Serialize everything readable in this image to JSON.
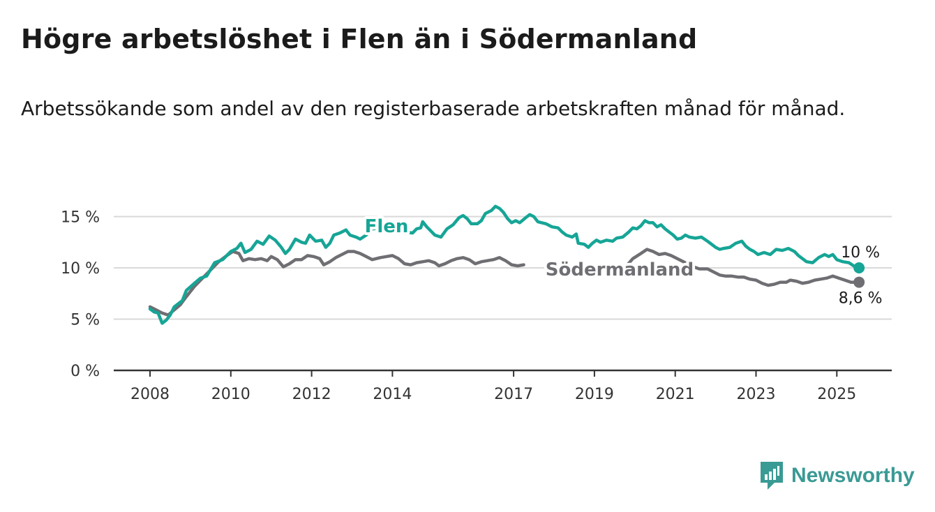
{
  "title": "Högre arbetslöshet i Flen än i Södermanland",
  "subtitle": "Arbetssökande som andel av den registerbaserade arbetskraften månad för månad.",
  "branding": {
    "name": "Newsworthy"
  },
  "colors": {
    "flen": "#16a596",
    "sodermanland": "#6e6e73",
    "grid": "#d9d9d9",
    "axis": "#333333",
    "brand": "#3a9a94"
  },
  "chart_data": {
    "type": "line",
    "ylim": [
      0,
      16.5
    ],
    "xlim": [
      2008,
      2025.8
    ],
    "y_ticks": [
      {
        "value": 0,
        "label": "0 %"
      },
      {
        "value": 5,
        "label": "5 %"
      },
      {
        "value": 10,
        "label": "10 %"
      },
      {
        "value": 15,
        "label": "15 %"
      }
    ],
    "x_ticks": [
      "2008",
      "2010",
      "2012",
      "2014",
      "2017",
      "2019",
      "2021",
      "2023",
      "2025"
    ],
    "grid": true,
    "series": [
      {
        "name": "Flen",
        "color": "#16a596",
        "end_label": "10 %",
        "points": [
          [
            2008.0,
            6.0
          ],
          [
            2008.1,
            5.7
          ],
          [
            2008.2,
            5.6
          ],
          [
            2008.3,
            4.6
          ],
          [
            2008.4,
            4.9
          ],
          [
            2008.5,
            5.4
          ],
          [
            2008.6,
            6.2
          ],
          [
            2008.8,
            6.8
          ],
          [
            2008.9,
            7.8
          ],
          [
            2009.1,
            8.5
          ],
          [
            2009.25,
            9.0
          ],
          [
            2009.4,
            9.2
          ],
          [
            2009.6,
            10.5
          ],
          [
            2009.8,
            10.8
          ],
          [
            2010.0,
            11.6
          ],
          [
            2010.15,
            11.9
          ],
          [
            2010.25,
            12.4
          ],
          [
            2010.35,
            11.5
          ],
          [
            2010.5,
            11.8
          ],
          [
            2010.65,
            12.6
          ],
          [
            2010.8,
            12.3
          ],
          [
            2010.95,
            13.1
          ],
          [
            2011.1,
            12.7
          ],
          [
            2011.25,
            12.0
          ],
          [
            2011.35,
            11.4
          ],
          [
            2011.45,
            11.8
          ],
          [
            2011.6,
            12.8
          ],
          [
            2011.75,
            12.5
          ],
          [
            2011.85,
            12.4
          ],
          [
            2011.95,
            13.2
          ],
          [
            2012.1,
            12.6
          ],
          [
            2012.25,
            12.7
          ],
          [
            2012.35,
            12.0
          ],
          [
            2012.45,
            12.4
          ],
          [
            2012.55,
            13.2
          ],
          [
            2012.7,
            13.4
          ],
          [
            2012.85,
            13.7
          ],
          [
            2012.95,
            13.2
          ],
          [
            2013.1,
            13.0
          ],
          [
            2013.2,
            12.8
          ],
          [
            2013.35,
            13.2
          ],
          [
            2013.5,
            13.8
          ],
          [
            2013.7,
            13.9
          ],
          [
            2013.9,
            13.6
          ],
          [
            2014.1,
            13.9
          ],
          [
            2014.3,
            13.5
          ],
          [
            2014.5,
            13.4
          ],
          [
            2014.6,
            13.8
          ],
          [
            2014.7,
            13.9
          ],
          [
            2014.75,
            14.5
          ],
          [
            2014.85,
            14.0
          ],
          [
            2014.95,
            13.6
          ],
          [
            2015.05,
            13.2
          ],
          [
            2015.2,
            13.0
          ],
          [
            2015.35,
            13.8
          ],
          [
            2015.5,
            14.2
          ],
          [
            2015.65,
            14.9
          ],
          [
            2015.75,
            15.1
          ],
          [
            2015.85,
            14.8
          ],
          [
            2015.95,
            14.3
          ],
          [
            2016.1,
            14.3
          ],
          [
            2016.2,
            14.6
          ],
          [
            2016.3,
            15.3
          ],
          [
            2016.45,
            15.6
          ],
          [
            2016.55,
            16.0
          ],
          [
            2016.65,
            15.8
          ],
          [
            2016.75,
            15.4
          ],
          [
            2016.85,
            14.8
          ],
          [
            2016.95,
            14.4
          ],
          [
            2017.05,
            14.6
          ],
          [
            2017.15,
            14.4
          ],
          [
            2017.3,
            14.9
          ],
          [
            2017.4,
            15.2
          ],
          [
            2017.5,
            15.0
          ],
          [
            2017.6,
            14.5
          ],
          [
            2017.8,
            14.3
          ],
          [
            2017.95,
            14.0
          ],
          [
            2018.1,
            13.9
          ],
          [
            2018.2,
            13.5
          ],
          [
            2018.3,
            13.2
          ],
          [
            2018.45,
            13.0
          ],
          [
            2018.55,
            13.3
          ],
          [
            2018.6,
            12.4
          ],
          [
            2018.75,
            12.3
          ],
          [
            2018.85,
            12.0
          ],
          [
            2018.95,
            12.4
          ],
          [
            2019.05,
            12.7
          ],
          [
            2019.15,
            12.5
          ],
          [
            2019.3,
            12.7
          ],
          [
            2019.45,
            12.6
          ],
          [
            2019.55,
            12.9
          ],
          [
            2019.7,
            13.0
          ],
          [
            2019.85,
            13.5
          ],
          [
            2019.95,
            13.9
          ],
          [
            2020.05,
            13.8
          ],
          [
            2020.15,
            14.1
          ],
          [
            2020.25,
            14.6
          ],
          [
            2020.35,
            14.4
          ],
          [
            2020.45,
            14.4
          ],
          [
            2020.55,
            14.0
          ],
          [
            2020.65,
            14.2
          ],
          [
            2020.75,
            13.8
          ],
          [
            2020.85,
            13.5
          ],
          [
            2020.95,
            13.2
          ],
          [
            2021.05,
            12.8
          ],
          [
            2021.15,
            12.9
          ],
          [
            2021.25,
            13.2
          ],
          [
            2021.35,
            13.0
          ],
          [
            2021.5,
            12.9
          ],
          [
            2021.65,
            13.0
          ],
          [
            2021.8,
            12.6
          ],
          [
            2021.9,
            12.3
          ],
          [
            2022.0,
            12.0
          ],
          [
            2022.1,
            11.8
          ],
          [
            2022.2,
            11.9
          ],
          [
            2022.35,
            12.0
          ],
          [
            2022.5,
            12.4
          ],
          [
            2022.65,
            12.6
          ],
          [
            2022.75,
            12.1
          ],
          [
            2022.85,
            11.8
          ],
          [
            2022.95,
            11.6
          ],
          [
            2023.05,
            11.3
          ],
          [
            2023.2,
            11.5
          ],
          [
            2023.35,
            11.3
          ],
          [
            2023.5,
            11.8
          ],
          [
            2023.65,
            11.7
          ],
          [
            2023.8,
            11.9
          ],
          [
            2023.95,
            11.6
          ],
          [
            2024.05,
            11.2
          ],
          [
            2024.15,
            10.9
          ],
          [
            2024.25,
            10.6
          ],
          [
            2024.4,
            10.5
          ],
          [
            2024.55,
            11.0
          ],
          [
            2024.7,
            11.3
          ],
          [
            2024.8,
            11.1
          ],
          [
            2024.9,
            11.3
          ],
          [
            2025.0,
            10.8
          ],
          [
            2025.15,
            10.6
          ],
          [
            2025.3,
            10.5
          ],
          [
            2025.45,
            10.1
          ],
          [
            2025.55,
            10.0
          ]
        ]
      },
      {
        "name": "Södermanland",
        "color": "#6e6e73",
        "end_label": "8,6 %",
        "points": [
          [
            2008.0,
            6.2
          ],
          [
            2008.15,
            5.9
          ],
          [
            2008.3,
            5.6
          ],
          [
            2008.45,
            5.4
          ],
          [
            2008.6,
            5.9
          ],
          [
            2008.75,
            6.4
          ],
          [
            2008.9,
            7.2
          ],
          [
            2009.1,
            8.2
          ],
          [
            2009.3,
            9.0
          ],
          [
            2009.5,
            9.8
          ],
          [
            2009.7,
            10.6
          ],
          [
            2009.9,
            11.2
          ],
          [
            2010.05,
            11.6
          ],
          [
            2010.2,
            11.4
          ],
          [
            2010.3,
            10.7
          ],
          [
            2010.45,
            10.9
          ],
          [
            2010.6,
            10.8
          ],
          [
            2010.75,
            10.9
          ],
          [
            2010.9,
            10.7
          ],
          [
            2011.0,
            11.1
          ],
          [
            2011.15,
            10.8
          ],
          [
            2011.3,
            10.1
          ],
          [
            2011.45,
            10.4
          ],
          [
            2011.6,
            10.8
          ],
          [
            2011.75,
            10.8
          ],
          [
            2011.9,
            11.2
          ],
          [
            2012.05,
            11.1
          ],
          [
            2012.2,
            10.9
          ],
          [
            2012.3,
            10.3
          ],
          [
            2012.45,
            10.6
          ],
          [
            2012.6,
            11.0
          ],
          [
            2012.75,
            11.3
          ],
          [
            2012.9,
            11.6
          ],
          [
            2013.05,
            11.6
          ],
          [
            2013.2,
            11.4
          ],
          [
            2013.35,
            11.1
          ],
          [
            2013.5,
            10.8
          ],
          [
            2013.7,
            11.0
          ],
          [
            2013.85,
            11.1
          ],
          [
            2014.0,
            11.2
          ],
          [
            2014.15,
            10.9
          ],
          [
            2014.3,
            10.4
          ],
          [
            2014.45,
            10.3
          ],
          [
            2014.6,
            10.5
          ],
          [
            2014.75,
            10.6
          ],
          [
            2014.9,
            10.7
          ],
          [
            2015.05,
            10.5
          ],
          [
            2015.15,
            10.2
          ],
          [
            2015.3,
            10.4
          ],
          [
            2015.45,
            10.7
          ],
          [
            2015.6,
            10.9
          ],
          [
            2015.75,
            11.0
          ],
          [
            2015.9,
            10.8
          ],
          [
            2016.05,
            10.4
          ],
          [
            2016.2,
            10.6
          ],
          [
            2016.35,
            10.7
          ],
          [
            2016.5,
            10.8
          ],
          [
            2016.65,
            11.0
          ],
          [
            2016.8,
            10.7
          ],
          [
            2016.95,
            10.3
          ],
          [
            2017.1,
            10.2
          ],
          [
            2017.25,
            10.3
          ]
        ],
        "points_late": [
          [
            2019.4,
            9.2
          ],
          [
            2019.6,
            9.6
          ],
          [
            2019.75,
            10.0
          ],
          [
            2019.95,
            10.9
          ],
          [
            2020.15,
            11.4
          ],
          [
            2020.3,
            11.8
          ],
          [
            2020.45,
            11.6
          ],
          [
            2020.6,
            11.3
          ],
          [
            2020.75,
            11.4
          ],
          [
            2020.9,
            11.2
          ],
          [
            2021.05,
            10.9
          ],
          [
            2021.25,
            10.5
          ],
          [
            2021.45,
            10.1
          ],
          [
            2021.6,
            9.9
          ],
          [
            2021.8,
            9.9
          ],
          [
            2021.95,
            9.6
          ],
          [
            2022.1,
            9.3
          ],
          [
            2022.25,
            9.2
          ],
          [
            2022.4,
            9.2
          ],
          [
            2022.55,
            9.1
          ],
          [
            2022.7,
            9.1
          ],
          [
            2022.85,
            8.9
          ],
          [
            2023.0,
            8.8
          ],
          [
            2023.15,
            8.5
          ],
          [
            2023.3,
            8.3
          ],
          [
            2023.45,
            8.4
          ],
          [
            2023.6,
            8.6
          ],
          [
            2023.75,
            8.6
          ],
          [
            2023.85,
            8.8
          ],
          [
            2024.0,
            8.7
          ],
          [
            2024.15,
            8.5
          ],
          [
            2024.3,
            8.6
          ],
          [
            2024.45,
            8.8
          ],
          [
            2024.6,
            8.9
          ],
          [
            2024.75,
            9.0
          ],
          [
            2024.9,
            9.2
          ],
          [
            2025.05,
            9.0
          ],
          [
            2025.2,
            8.8
          ],
          [
            2025.35,
            8.6
          ],
          [
            2025.55,
            8.6
          ]
        ]
      }
    ]
  }
}
